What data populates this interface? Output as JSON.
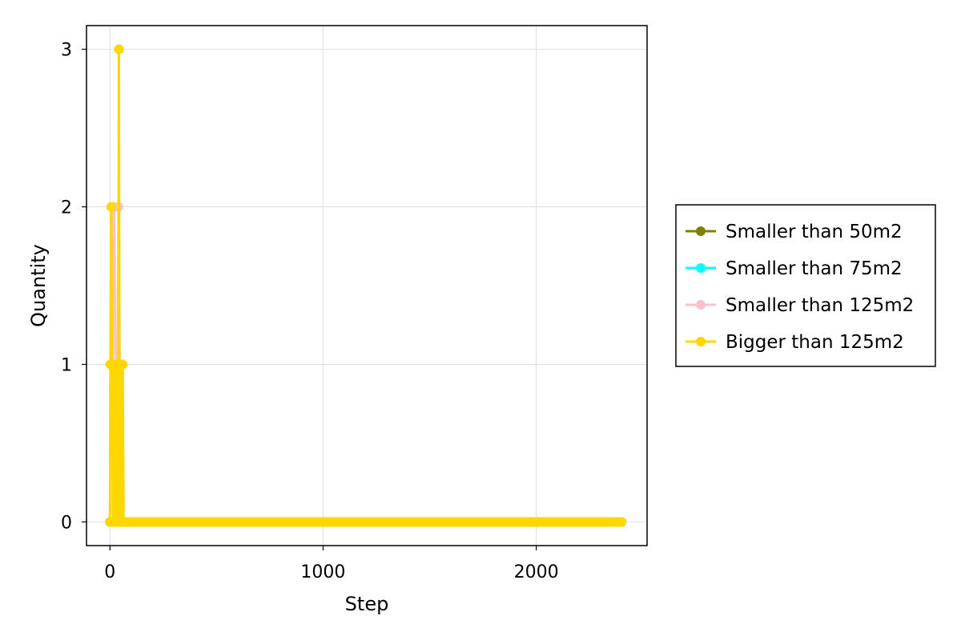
{
  "chart_data": {
    "type": "line",
    "title": "",
    "xlabel": "Step",
    "ylabel": "Quantity",
    "xlim": [
      -110,
      2520
    ],
    "ylim": [
      -0.15,
      3.15
    ],
    "xticks": [
      0,
      1000,
      2000
    ],
    "yticks": [
      0,
      1,
      2,
      3
    ],
    "grid": true,
    "legend_position": "right",
    "x_max_step": 2400,
    "series": [
      {
        "name": "Smaller than 50m2",
        "color": "#808000",
        "points": [
          [
            0,
            0
          ],
          [
            2400,
            0
          ]
        ]
      },
      {
        "name": "Smaller than 75m2",
        "color": "#00FFFF",
        "points": [
          [
            0,
            0
          ],
          [
            2400,
            0
          ]
        ]
      },
      {
        "name": "Smaller than 125m2",
        "color": "#FFC0CB",
        "points": [
          [
            0,
            0
          ],
          [
            4,
            1
          ],
          [
            8,
            2
          ],
          [
            14,
            1
          ],
          [
            20,
            2
          ],
          [
            28,
            1
          ],
          [
            36,
            0
          ],
          [
            40,
            2
          ],
          [
            46,
            1
          ],
          [
            52,
            0
          ],
          [
            2400,
            0
          ]
        ]
      },
      {
        "name": "Bigger than 125m2",
        "color": "#FFD700",
        "points": [
          [
            0,
            0
          ],
          [
            2,
            1
          ],
          [
            6,
            2
          ],
          [
            10,
            1
          ],
          [
            14,
            0
          ],
          [
            18,
            1
          ],
          [
            22,
            0
          ],
          [
            26,
            1
          ],
          [
            30,
            0
          ],
          [
            34,
            1
          ],
          [
            38,
            0
          ],
          [
            42,
            3
          ],
          [
            44,
            1
          ],
          [
            48,
            0
          ],
          [
            52,
            1
          ],
          [
            56,
            0
          ],
          [
            60,
            1
          ],
          [
            64,
            0
          ],
          [
            2400,
            0
          ]
        ]
      }
    ]
  }
}
